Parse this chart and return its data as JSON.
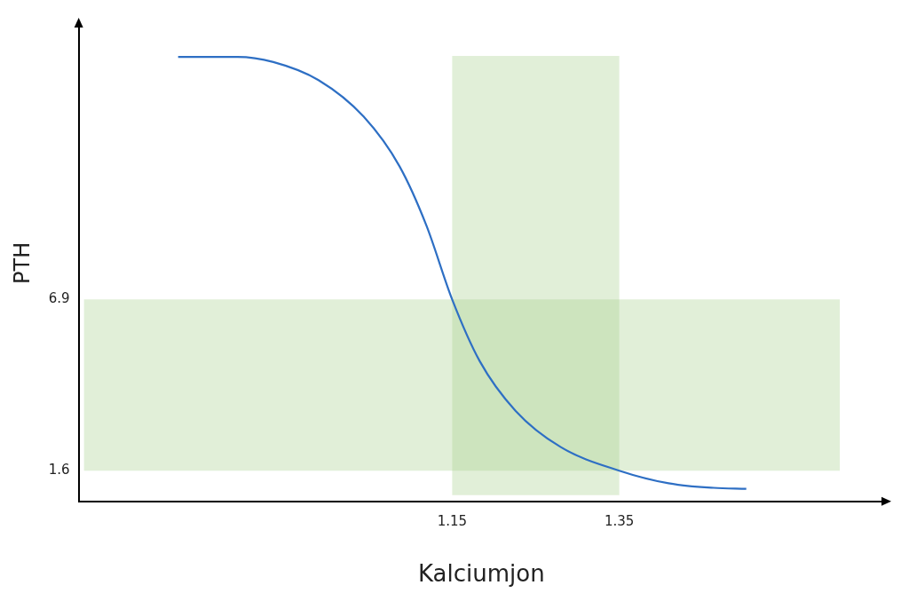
{
  "chart_data": {
    "type": "line",
    "xlabel": "Kalciumjon",
    "ylabel": "PTH",
    "x": [
      0.822,
      0.893,
      0.936,
      0.99,
      1.044,
      1.087,
      1.119,
      1.15,
      1.183,
      1.226,
      1.28,
      1.35,
      1.409,
      1.463,
      1.502
    ],
    "series": [
      {
        "color": "#2e6fc4",
        "values": [
          14.41,
          14.41,
          14.25,
          13.69,
          12.56,
          11.02,
          9.2,
          6.9,
          4.99,
          3.45,
          2.33,
          1.6,
          1.21,
          1.07,
          1.04
        ]
      }
    ],
    "xlim": [
      0.703,
      1.667
    ],
    "ylim": [
      0.65,
      15.4
    ],
    "xticks": [
      1.15,
      1.35
    ],
    "yticks": [
      1.6,
      6.9
    ],
    "bands": [
      {
        "axis": "x",
        "from": 1.15,
        "to": 1.35,
        "color": "#a9d18e"
      },
      {
        "axis": "y",
        "from": 1.6,
        "to": 6.9,
        "color": "#a9d18e"
      }
    ],
    "grid": false,
    "legend": false,
    "marker": "none",
    "line_style": "solid"
  }
}
